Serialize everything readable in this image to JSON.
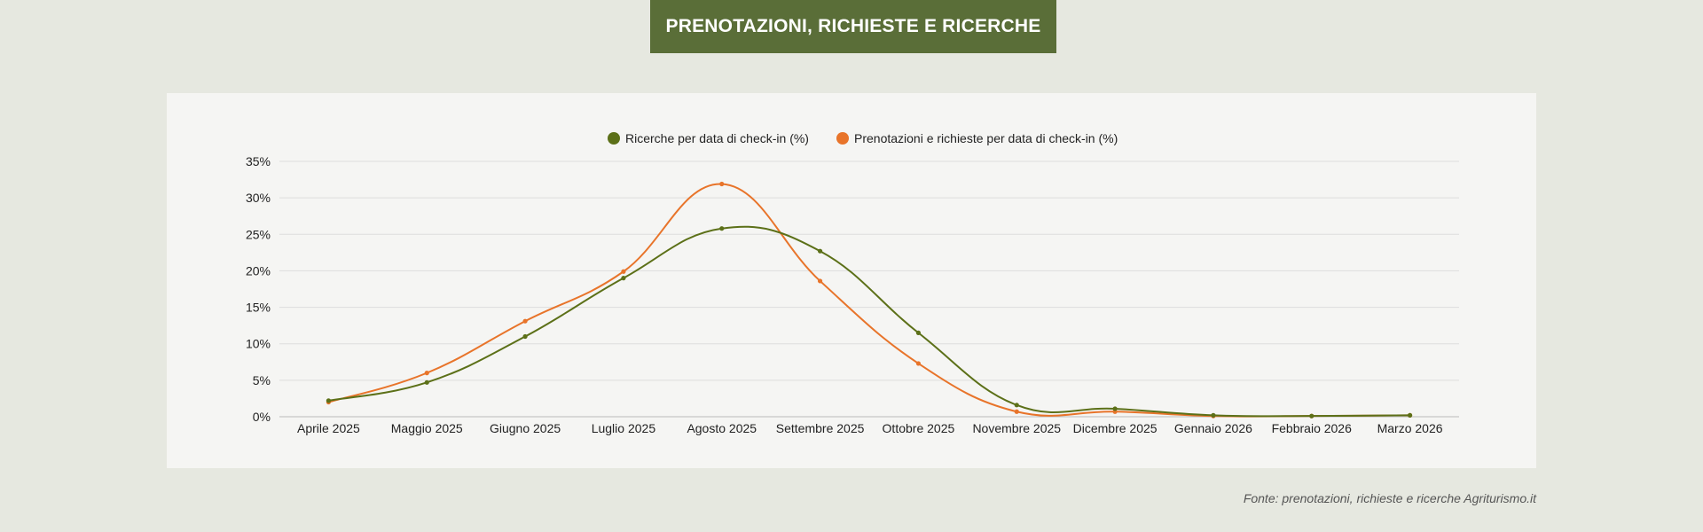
{
  "title": "PRENOTAZIONI, RICHIESTE E RICERCHE",
  "source": "Fonte: prenotazioni, richieste e ricerche Agriturismo.it",
  "colors": {
    "background": "#e6e8e0",
    "banner": "#5a6e38",
    "panel": "#f5f5f3",
    "searches": "#5c7018",
    "bookings": "#e8742a",
    "grid": "#dddddd"
  },
  "chart_data": {
    "type": "line",
    "categories": [
      "Aprile 2025",
      "Maggio 2025",
      "Giugno 2025",
      "Luglio 2025",
      "Agosto 2025",
      "Settembre 2025",
      "Ottobre 2025",
      "Novembre 2025",
      "Dicembre 2025",
      "Gennaio 2026",
      "Febbraio 2026",
      "Marzo 2026"
    ],
    "series": [
      {
        "name": "Ricerche per data di check-in (%)",
        "color": "#5c7018",
        "values": [
          2.2,
          4.7,
          11.0,
          19.0,
          25.8,
          22.7,
          11.5,
          1.6,
          1.1,
          0.2,
          0.1,
          0.2
        ]
      },
      {
        "name": "Prenotazioni e richieste per data di check-in (%)",
        "color": "#e8742a",
        "values": [
          2.0,
          6.0,
          13.1,
          19.9,
          31.9,
          18.6,
          7.3,
          0.7,
          0.7,
          0.1,
          0.1,
          0.2
        ]
      }
    ],
    "yticks": [
      "0%",
      "5%",
      "10%",
      "15%",
      "20%",
      "25%",
      "30%",
      "35%"
    ],
    "ylim": [
      0,
      35
    ],
    "title": "PRENOTAZIONI, RICHIESTE E RICERCHE",
    "xlabel": "",
    "ylabel": "",
    "legend": "top-center",
    "grid": true
  }
}
